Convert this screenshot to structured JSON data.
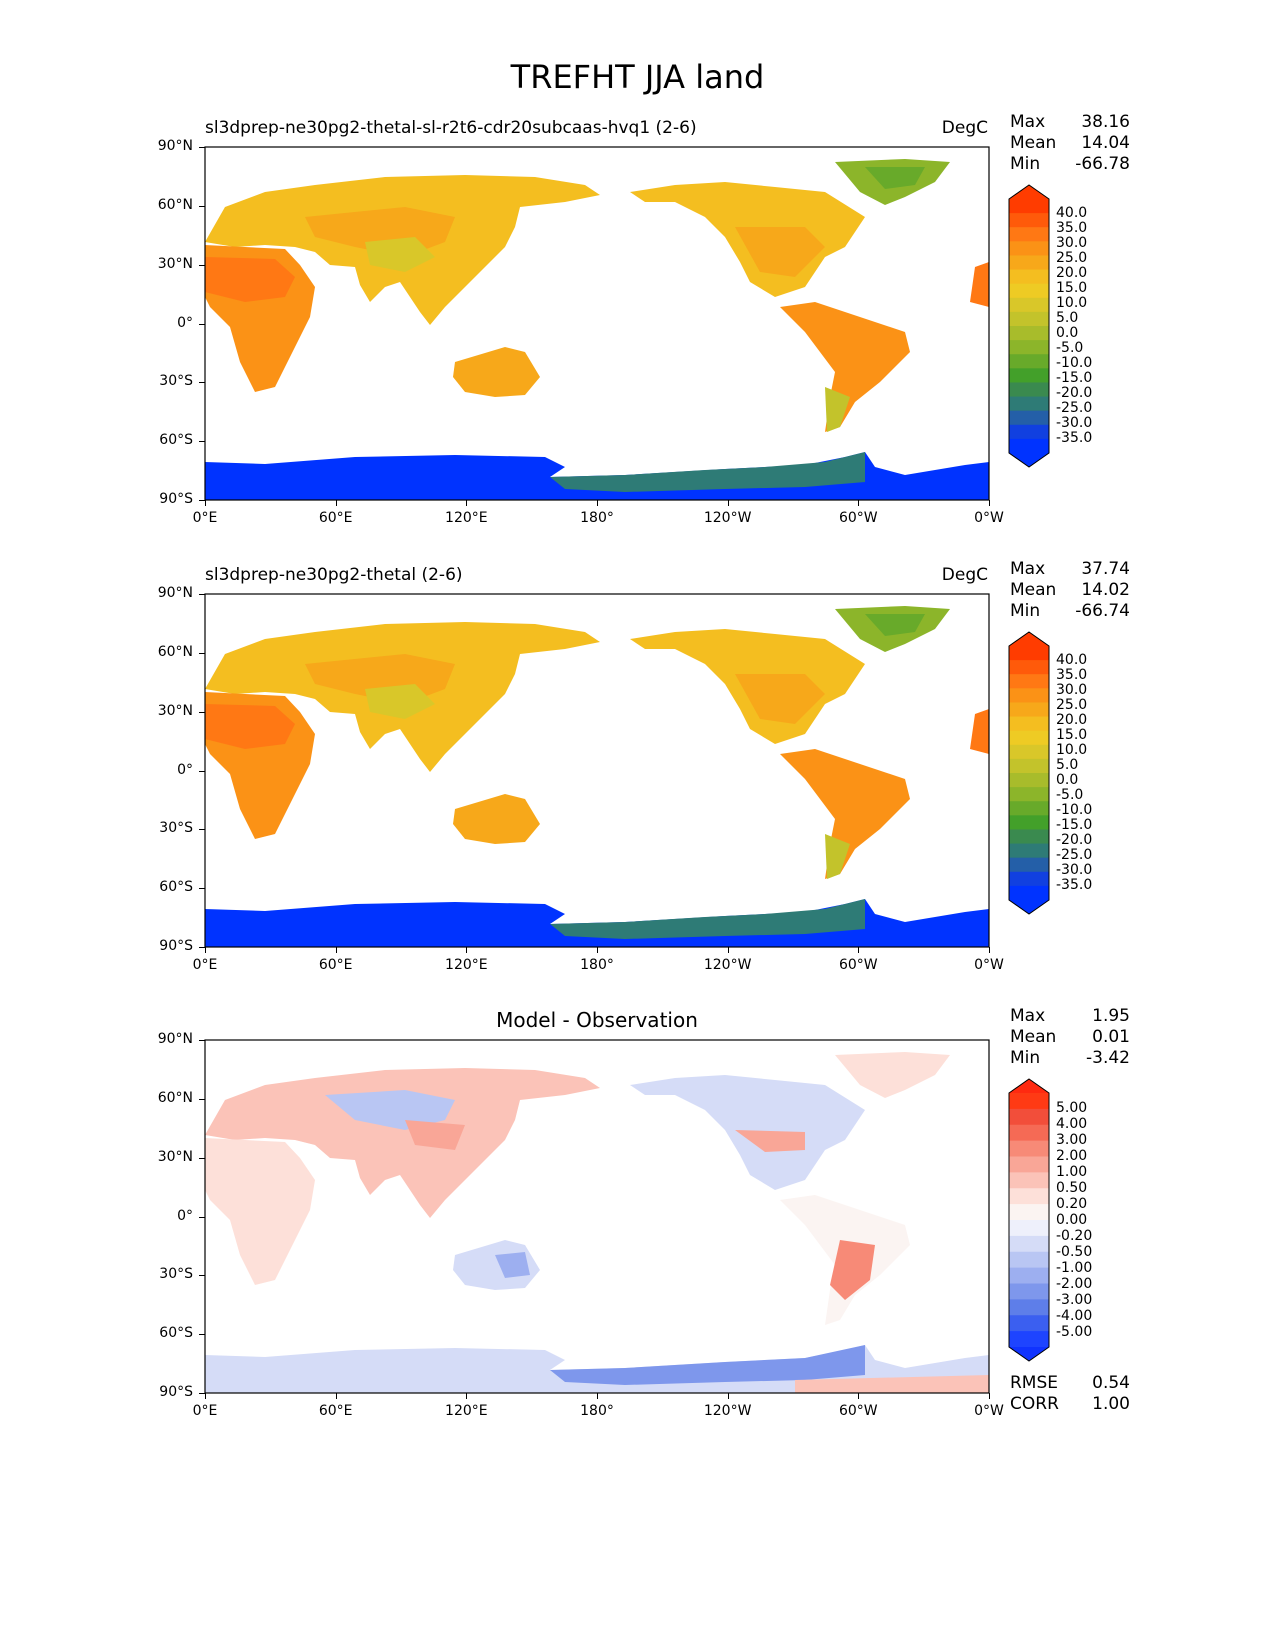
{
  "title": "TREFHT JJA land",
  "panels": [
    {
      "id": "test",
      "title": "sl3dprep-ne30pg2-thetal-sl-r2t6-cdr20subcaas-hvq1 (2-6)",
      "units": "DegC",
      "stats": [
        {
          "label": "Max",
          "value": "38.16"
        },
        {
          "label": "Mean",
          "value": "14.04"
        },
        {
          "label": "Min",
          "value": "-66.78"
        }
      ]
    },
    {
      "id": "ref",
      "title": "sl3dprep-ne30pg2-thetal (2-6)",
      "units": "DegC",
      "stats": [
        {
          "label": "Max",
          "value": "37.74"
        },
        {
          "label": "Mean",
          "value": "14.02"
        },
        {
          "label": "Min",
          "value": "-66.74"
        }
      ]
    },
    {
      "id": "diff",
      "title": "Model - Observation",
      "units": "",
      "stats": [
        {
          "label": "Max",
          "value": "1.95"
        },
        {
          "label": "Mean",
          "value": "0.01"
        },
        {
          "label": "Min",
          "value": "-3.42"
        }
      ],
      "extra_stats": [
        {
          "label": "RMSE",
          "value": "0.54"
        },
        {
          "label": "CORR",
          "value": "1.00"
        }
      ]
    }
  ],
  "axes": {
    "lat_ticks": [
      "90°N",
      "60°N",
      "30°N",
      "0°",
      "30°S",
      "60°S",
      "90°S"
    ],
    "lon_ticks": [
      "0°E",
      "60°E",
      "120°E",
      "180°",
      "120°W",
      "60°W",
      "0°W"
    ]
  },
  "colorbars": {
    "temperature": {
      "labels": [
        "40.0",
        "35.0",
        "30.0",
        "25.0",
        "20.0",
        "15.0",
        "10.0",
        "5.0",
        "0.0",
        "-5.0",
        "-10.0",
        "-15.0",
        "-20.0",
        "-25.0",
        "-30.0",
        "-35.0"
      ],
      "colors": [
        "#ff3c00",
        "#ff5a0a",
        "#ff7814",
        "#fb9216",
        "#f7a81a",
        "#f4be20",
        "#eecb24",
        "#d9c729",
        "#c3c32b",
        "#a8bc2b",
        "#8cb52a",
        "#68aa2a",
        "#43a02a",
        "#3a8a4f",
        "#2e7b76",
        "#245fa8",
        "#1140e0",
        "#0033ff"
      ],
      "top_color": "#ff3c00",
      "bottom_color": "#0033ff"
    },
    "difference": {
      "labels": [
        "5.00",
        "4.00",
        "3.00",
        "2.00",
        "1.00",
        "0.50",
        "0.20",
        "0.00",
        "-0.20",
        "-0.50",
        "-1.00",
        "-2.00",
        "-3.00",
        "-4.00",
        "-5.00"
      ],
      "colors": [
        "#ff3a14",
        "#f24e3a",
        "#f56a55",
        "#f78a77",
        "#f9a697",
        "#fbc3b8",
        "#fde0d9",
        "#fbf4f2",
        "#eef0fb",
        "#d5dcf7",
        "#b9c6f3",
        "#9daff0",
        "#7e97ec",
        "#5e7ee9",
        "#3b5ff0",
        "#1e44ff"
      ],
      "top_color": "#ff2a10",
      "bottom_color": "#1033ff"
    }
  },
  "map": {
    "projection": "PlateCarree",
    "lon_range": [
      0,
      360
    ],
    "lat_range": [
      -90,
      90
    ],
    "ocean_color": "#ffffff",
    "coastline_color": "#000000"
  }
}
